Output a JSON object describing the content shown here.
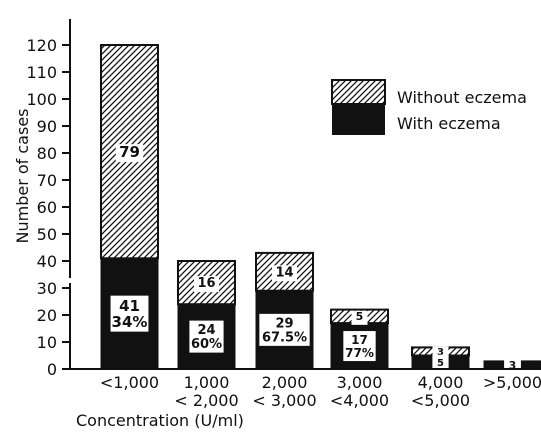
{
  "chart_data": {
    "type": "bar",
    "stacked": true,
    "xlabel": "Concentration (U/ml)",
    "ylabel": "Number of cases",
    "ylim": [
      0,
      120
    ],
    "yticks": [
      0,
      10,
      20,
      30,
      40,
      50,
      60,
      70,
      80,
      90,
      100,
      110,
      120
    ],
    "axis_break": "between 30 and 40",
    "legend_position": "top-right",
    "categories": [
      {
        "line1": "<1,000",
        "line2": ""
      },
      {
        "line1": "1,000",
        "line2": "< 2,000"
      },
      {
        "line1": "2,000",
        "line2": "< 3,000"
      },
      {
        "line1": "3,000",
        "line2": "<4,000"
      },
      {
        "line1": "4,000",
        "line2": "<5,000"
      },
      {
        "line1": ">5,000",
        "line2": ""
      }
    ],
    "series": [
      {
        "name": "With eczema",
        "fill": "#111111",
        "values": [
          41,
          24,
          29,
          17,
          5,
          3
        ],
        "labels": [
          [
            "41",
            "34%"
          ],
          [
            "24",
            "60%"
          ],
          [
            "29",
            "67.5%"
          ],
          [
            "17",
            "77%"
          ],
          [
            "5"
          ],
          [
            "3"
          ]
        ]
      },
      {
        "name": "Without eczema",
        "fill": "#ffffff",
        "pattern": "diagonal-hatch",
        "values": [
          79,
          16,
          14,
          5,
          3,
          0
        ],
        "labels": [
          [
            "79"
          ],
          [
            "16"
          ],
          [
            "14"
          ],
          [
            "5"
          ],
          [
            "3"
          ],
          []
        ]
      }
    ]
  }
}
